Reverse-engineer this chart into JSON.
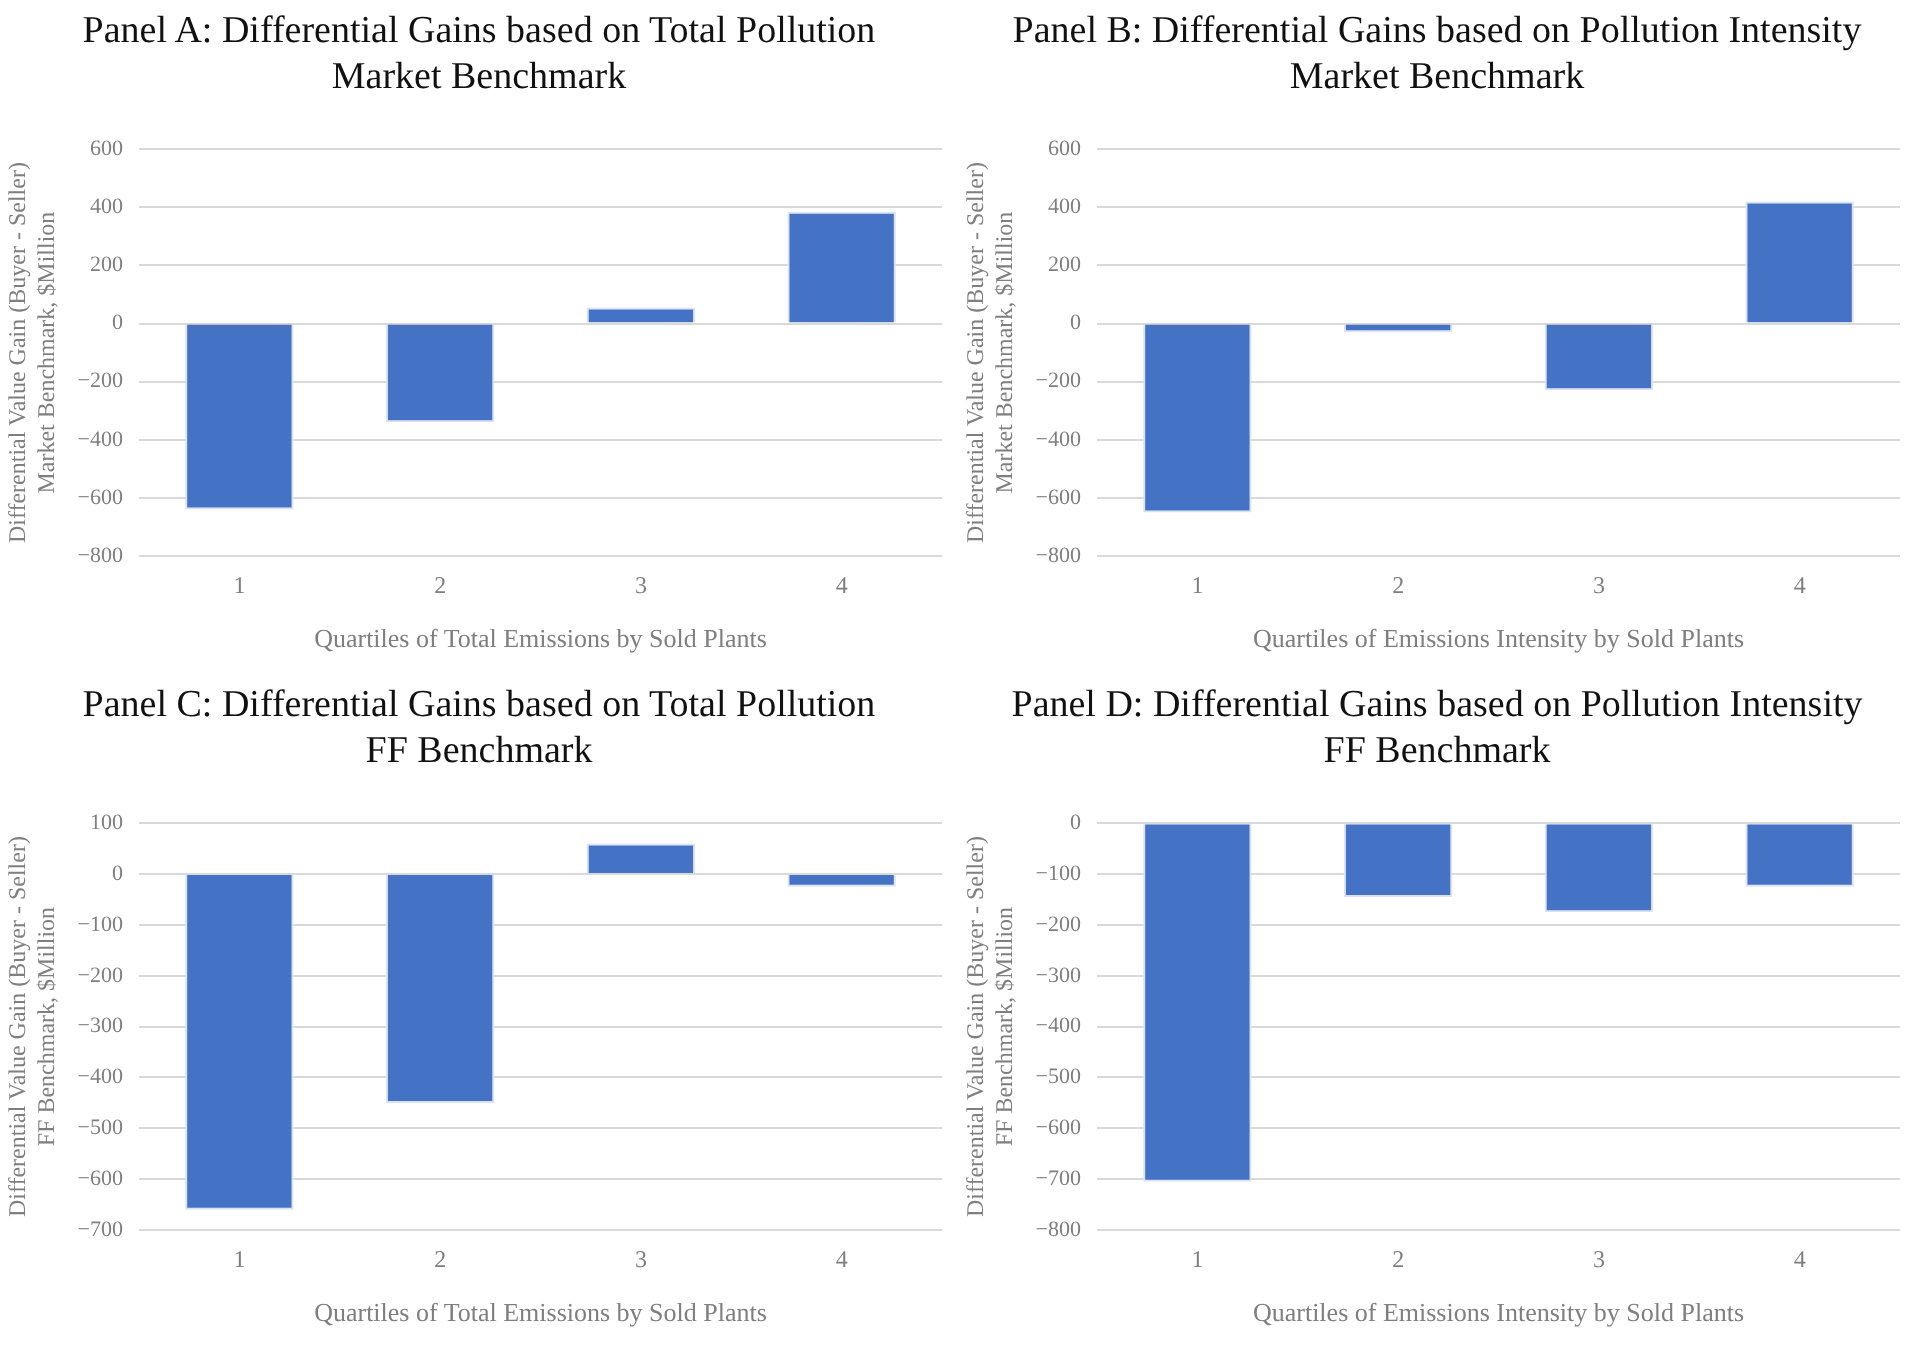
{
  "chart_data": [
    {
      "type": "bar",
      "title": "Panel A: Differential Gains based on Total Pollution\nMarket Benchmark",
      "xlabel": "Quartiles of Total Emissions by Sold Plants",
      "ylabel": "Differential Value Gain (Buyer - Seller)\nMarket Benchmark, $Million",
      "categories": [
        "1",
        "2",
        "3",
        "4"
      ],
      "values": [
        -640,
        -340,
        55,
        385
      ],
      "color": "#4472c4",
      "ylim": [
        -800,
        600
      ],
      "yticks": [
        {
          "value": -800,
          "label": "−800"
        },
        {
          "value": -600,
          "label": "−600"
        },
        {
          "value": -400,
          "label": "−400"
        },
        {
          "value": -200,
          "label": "−200"
        },
        0,
        200,
        400,
        600
      ],
      "grid": "y"
    },
    {
      "type": "bar",
      "title": "Panel B: Differential Gains based on Pollution Intensity\nMarket Benchmark",
      "xlabel": "Quartiles of Emissions Intensity by Sold Plants",
      "ylabel": "Differential Value Gain (Buyer - Seller)\nMarket Benchmark, $Million",
      "categories": [
        "1",
        "2",
        "3",
        "4"
      ],
      "values": [
        -650,
        -30,
        -230,
        420
      ],
      "color": "#4472c4",
      "ylim": [
        -800,
        600
      ],
      "yticks": [
        {
          "value": -800,
          "label": "−800"
        },
        {
          "value": -600,
          "label": "−600"
        },
        {
          "value": -400,
          "label": "−400"
        },
        {
          "value": -200,
          "label": "−200"
        },
        0,
        200,
        400,
        600
      ],
      "grid": "y"
    },
    {
      "type": "bar",
      "title": "Panel C: Differential Gains based on Total Pollution\nFF Benchmark",
      "xlabel": "Quartiles of Total Emissions by Sold Plants",
      "ylabel": "Differential Value Gain (Buyer - Seller)\nFF Benchmark, $Million",
      "categories": [
        "1",
        "2",
        "3",
        "4"
      ],
      "values": [
        -660,
        -450,
        60,
        -25
      ],
      "color": "#4472c4",
      "ylim": [
        -700,
        100
      ],
      "yticks": [
        {
          "value": -700,
          "label": "−700"
        },
        {
          "value": -600,
          "label": "−600"
        },
        {
          "value": -500,
          "label": "−500"
        },
        {
          "value": -400,
          "label": "−400"
        },
        {
          "value": -300,
          "label": "−300"
        },
        {
          "value": -200,
          "label": "−200"
        },
        {
          "value": -100,
          "label": "−100"
        },
        0,
        100
      ],
      "grid": "y"
    },
    {
      "type": "bar",
      "title": "Panel D: Differential Gains based on Pollution Intensity\nFF Benchmark",
      "xlabel": "Quartiles of Emissions Intensity by Sold Plants",
      "ylabel": "Differential Value Gain (Buyer - Seller)\nFF Benchmark, $Million",
      "categories": [
        "1",
        "2",
        "3",
        "4"
      ],
      "values": [
        -705,
        -145,
        -175,
        -125
      ],
      "color": "#4472c4",
      "ylim": [
        -800,
        0
      ],
      "yticks": [
        {
          "value": -800,
          "label": "−800"
        },
        {
          "value": -700,
          "label": "−700"
        },
        {
          "value": -600,
          "label": "−600"
        },
        {
          "value": -500,
          "label": "−500"
        },
        {
          "value": -400,
          "label": "−400"
        },
        {
          "value": -300,
          "label": "−300"
        },
        {
          "value": -200,
          "label": "−200"
        },
        {
          "value": -100,
          "label": "−100"
        },
        0
      ],
      "grid": "y"
    }
  ]
}
